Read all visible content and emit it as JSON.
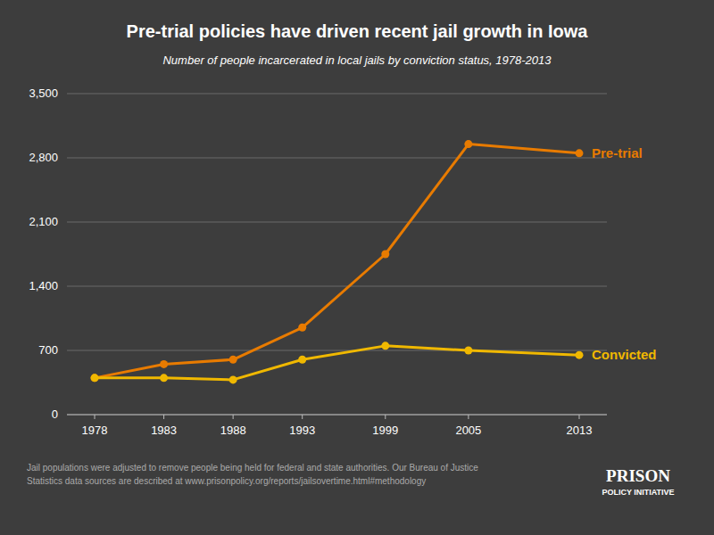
{
  "chart_data": {
    "type": "line",
    "title": "Pre-trial policies have driven recent jail growth in Iowa",
    "subtitle": "Number of people incarcerated in local jails by conviction status, 1978-2013",
    "footnote": "Jail populations were adjusted to remove people being held for federal and state authorities. Our Bureau of Justice\nStatistics data sources are described at www.prisonpolicy.org/reports/jailsovertime.html#methodology",
    "annotations": [
      "PRISON",
      "POLICY INITIATIVE"
    ],
    "x": [
      1978,
      1983,
      1988,
      1993,
      1999,
      2005,
      2013
    ],
    "xlim": [
      1976,
      2015
    ],
    "xticks": [
      1978,
      1983,
      1988,
      1993,
      1999,
      2005,
      2013
    ],
    "ylim": [
      0,
      3500
    ],
    "yticks": [
      0,
      700,
      {
        "value": 1400,
        "label": "1,400"
      },
      {
        "value": 2100,
        "label": "2,100"
      },
      {
        "value": 2800,
        "label": "2,800"
      },
      {
        "value": 3500,
        "label": "3,500"
      }
    ],
    "grid": true,
    "marker": "circle",
    "series": [
      {
        "name": "Pre-trial",
        "color": "#E87B00",
        "values": [
          400,
          550,
          600,
          950,
          1750,
          2950,
          2850
        ]
      },
      {
        "name": "Convicted",
        "color": "#F0B800",
        "values": [
          400,
          400,
          380,
          600,
          750,
          700,
          650
        ]
      }
    ]
  }
}
